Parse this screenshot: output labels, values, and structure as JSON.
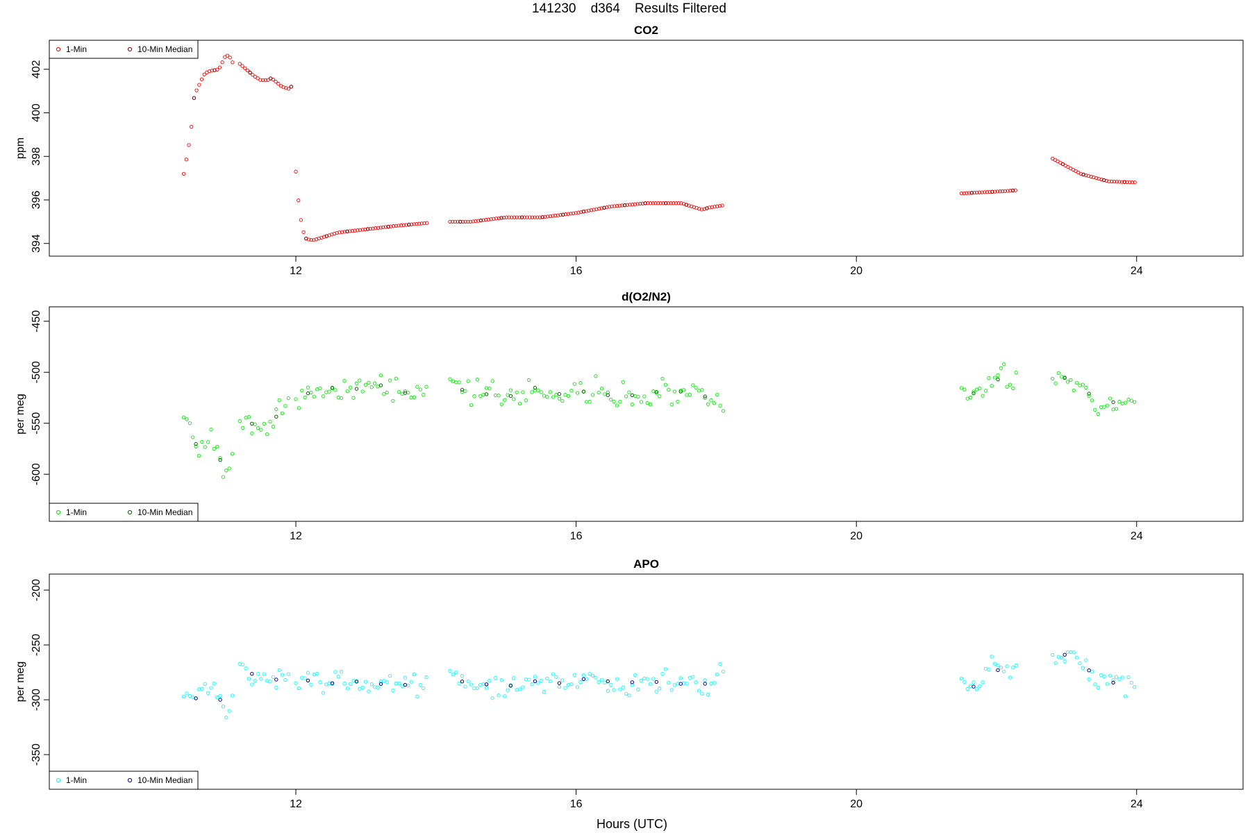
{
  "figure": {
    "title": "141230    d364    Results Filtered",
    "xlabel": "Hours (UTC)"
  },
  "chart_data": [
    {
      "type": "scatter",
      "title": "CO2",
      "ylabel": "ppm",
      "xlim": [
        8.6,
        25.4
      ],
      "ylim": [
        393.8,
        402.95
      ],
      "xticks": [
        12,
        16,
        20,
        24
      ],
      "yticks": [
        394,
        396,
        398,
        400,
        402
      ],
      "grid": false,
      "legend_position": "top-left",
      "series": [
        {
          "name": "1-Min",
          "color": "#ff0000",
          "segments": [
            {
              "x": [
                10.4,
                10.5,
                10.55,
                10.65,
                10.7,
                10.75,
                10.9,
                11.0,
                11.05,
                11.1
              ],
              "y": [
                397.2,
                399.0,
                400.8,
                401.5,
                401.8,
                401.9,
                402.0,
                402.65,
                402.6,
                402.3
              ]
            },
            {
              "x": [
                11.2,
                11.4,
                11.5,
                11.6,
                11.65,
                11.8,
                11.9,
                11.95
              ],
              "y": [
                402.25,
                401.7,
                401.5,
                401.5,
                401.6,
                401.2,
                401.1,
                401.25
              ]
            },
            {
              "x": [
                12.0,
                12.05,
                12.1,
                12.15,
                12.25,
                12.4,
                12.6,
                13.0,
                13.4,
                13.9
              ],
              "y": [
                397.3,
                395.5,
                394.6,
                394.2,
                394.15,
                394.3,
                394.5,
                394.65,
                394.8,
                394.95
              ]
            },
            {
              "x": [
                14.2,
                14.5,
                15.0,
                15.5,
                16.0,
                16.5,
                17.0,
                17.5,
                17.8,
                17.9,
                18.0,
                18.1
              ],
              "y": [
                395.0,
                395.0,
                395.2,
                395.2,
                395.4,
                395.7,
                395.85,
                395.85,
                395.55,
                395.65,
                395.7,
                395.75
              ]
            },
            {
              "x": [
                21.5,
                21.8,
                22.1,
                22.3
              ],
              "y": [
                396.3,
                396.35,
                396.4,
                396.45
              ]
            },
            {
              "x": [
                22.8,
                23.2,
                23.6,
                24.0
              ],
              "y": [
                397.9,
                397.2,
                396.85,
                396.8
              ]
            }
          ]
        },
        {
          "name": "10-Min Median",
          "color": "#8b0000",
          "segments": []
        }
      ]
    },
    {
      "type": "scatter",
      "title": "d(O2/N2)",
      "ylabel": "per meg",
      "xlim": [
        8.6,
        25.4
      ],
      "ylim": [
        -638,
        -444
      ],
      "xticks": [
        12,
        16,
        20,
        24
      ],
      "yticks": [
        -450,
        -500,
        -550,
        -600
      ],
      "grid": false,
      "legend_position": "bottom-left",
      "series": [
        {
          "name": "1-Min",
          "color": "#00ee00",
          "segments": [
            {
              "x": [
                10.4,
                10.6,
                10.8,
                11.0,
                11.1
              ],
              "y": [
                -540,
                -575,
                -565,
                -600,
                -575
              ]
            },
            {
              "x": [
                11.2,
                11.45,
                11.7,
                11.9
              ],
              "y": [
                -540,
                -555,
                -545,
                -530
              ]
            },
            {
              "x": [
                12.0,
                12.2,
                12.5,
                12.8,
                13.1,
                13.5,
                13.9
              ],
              "y": [
                -525,
                -520,
                -515,
                -518,
                -510,
                -520,
                -522
              ]
            },
            {
              "x": [
                14.2,
                14.6,
                15.0,
                15.4,
                15.8,
                16.2,
                16.6,
                17.0,
                17.4,
                17.8,
                18.1
              ],
              "y": [
                -515,
                -520,
                -525,
                -515,
                -522,
                -518,
                -525,
                -520,
                -518,
                -522,
                -535
              ]
            },
            {
              "x": [
                21.5,
                21.7,
                21.9,
                22.1,
                22.3
              ],
              "y": [
                -525,
                -520,
                -510,
                -505,
                -515
              ]
            },
            {
              "x": [
                22.8,
                23.0,
                23.2,
                23.4,
                23.6,
                23.8,
                24.0
              ],
              "y": [
                -510,
                -505,
                -515,
                -525,
                -530,
                -528,
                -535
              ]
            }
          ]
        },
        {
          "name": "10-Min Median",
          "color": "#006400",
          "segments": []
        }
      ]
    },
    {
      "type": "scatter",
      "title": "APO",
      "ylabel": "per meg",
      "xlim": [
        8.6,
        25.4
      ],
      "ylim": [
        -374,
        -193
      ],
      "xticks": [
        12,
        16,
        20,
        24
      ],
      "yticks": [
        -200,
        -250,
        -300,
        -350
      ],
      "grid": false,
      "legend_position": "bottom-left",
      "series": [
        {
          "name": "1-Min",
          "color": "#00ffff",
          "segments": [
            {
              "x": [
                10.4,
                10.6,
                10.8,
                11.0,
                11.1
              ],
              "y": [
                -290,
                -300,
                -285,
                -310,
                -295
              ]
            },
            {
              "x": [
                11.2,
                11.45,
                11.7,
                11.9
              ],
              "y": [
                -268,
                -280,
                -282,
                -278
              ]
            },
            {
              "x": [
                12.0,
                12.2,
                12.5,
                12.8,
                13.1,
                13.5,
                13.9
              ],
              "y": [
                -285,
                -282,
                -285,
                -283,
                -285,
                -287,
                -283
              ]
            },
            {
              "x": [
                14.2,
                14.6,
                15.0,
                15.4,
                15.8,
                16.2,
                16.6,
                17.0,
                17.4,
                17.8,
                18.1
              ],
              "y": [
                -282,
                -285,
                -288,
                -283,
                -285,
                -280,
                -285,
                -283,
                -285,
                -287,
                -275
              ]
            },
            {
              "x": [
                21.5,
                21.7,
                21.9,
                22.1,
                22.3
              ],
              "y": [
                -275,
                -290,
                -270,
                -275,
                -272
              ]
            },
            {
              "x": [
                22.8,
                23.0,
                23.2,
                23.4,
                23.6,
                23.8,
                24.0
              ],
              "y": [
                -265,
                -258,
                -260,
                -282,
                -285,
                -283,
                -285
              ]
            }
          ]
        },
        {
          "name": "10-Min Median",
          "color": "#00008b",
          "segments": []
        }
      ]
    }
  ]
}
